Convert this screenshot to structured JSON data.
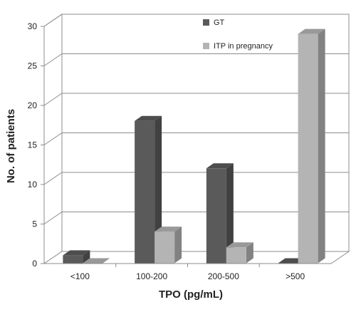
{
  "chart_data": {
    "type": "bar",
    "style": "3d-clustered-column",
    "title": "",
    "xlabel": "TPO (pg/mL)",
    "ylabel": "No. of patients",
    "categories": [
      "<100",
      "100-200",
      "200-500",
      ">500"
    ],
    "series": [
      {
        "name": "GT",
        "values": [
          1,
          18,
          12,
          0
        ],
        "color": "#5a5a5a"
      },
      {
        "name": "ITP in pregnancy",
        "values": [
          0,
          4,
          2,
          29
        ],
        "color": "#b4b4b4"
      }
    ],
    "ylim": [
      0,
      30
    ],
    "yticks": [
      0,
      5,
      10,
      15,
      20,
      25,
      30
    ],
    "grid": true,
    "legend_position": "top-right"
  }
}
